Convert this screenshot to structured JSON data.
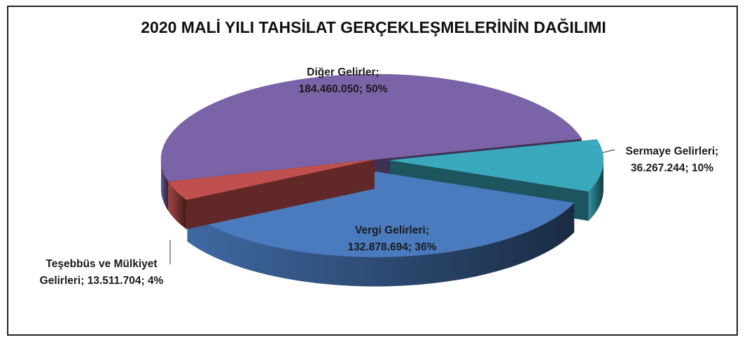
{
  "chart_data": {
    "type": "pie3d",
    "title": "2020 MALİ YILI TAHSİLAT GERÇEKLEŞMELERİNİN DAĞILIMI",
    "categories": [
      "Diğer Gelirler",
      "Sermaye Gelirleri",
      "Vergi Gelirleri",
      "Teşebbüs ve Mülkiyet Gelirleri"
    ],
    "values": [
      184460050,
      36267244,
      132878694,
      13511704
    ],
    "value_labels": [
      "184.460.050",
      "36.267.244",
      "132.878.694",
      "13.511.704"
    ],
    "percents": [
      50,
      10,
      36,
      4
    ],
    "percent_labels": [
      "50%",
      "10%",
      "36%",
      "4%"
    ],
    "label_separator": ";",
    "colors": [
      "#7b63a8",
      "#3aa9bd",
      "#4a7bbf",
      "#c0504d"
    ],
    "exploded": [
      false,
      true,
      true,
      false
    ]
  }
}
